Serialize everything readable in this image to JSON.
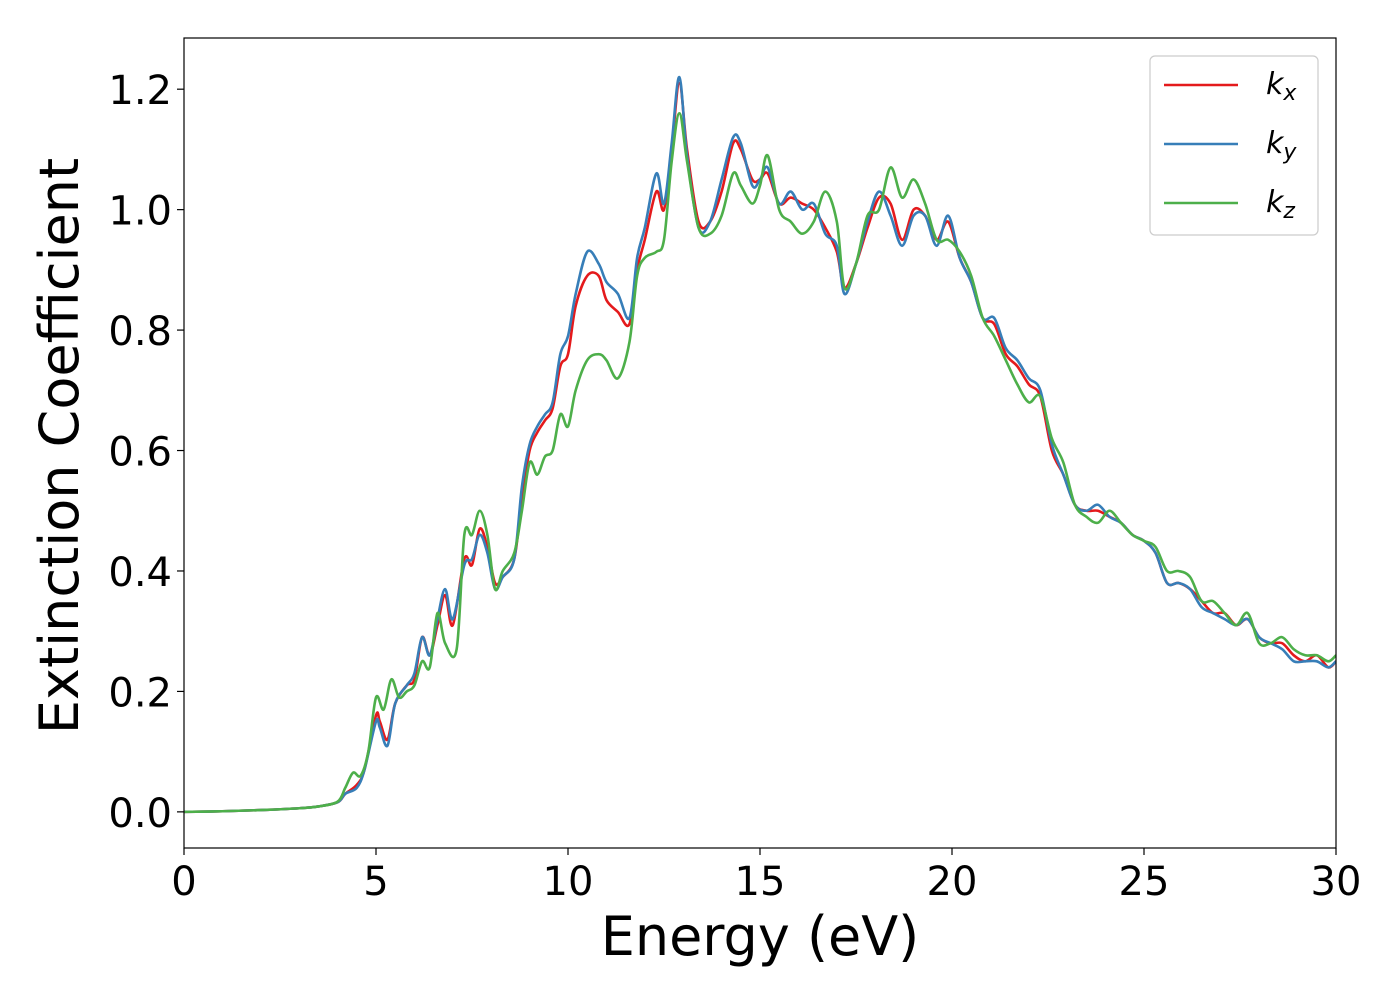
{
  "chart_data": {
    "type": "line",
    "title": "",
    "xlabel": "Energy (eV)",
    "ylabel": "Extinction Coefficient",
    "xlim": [
      0,
      30
    ],
    "ylim": [
      -0.06,
      1.285
    ],
    "xticks": [
      0,
      5,
      10,
      15,
      20,
      25,
      30
    ],
    "xtick_labels": [
      "0",
      "5",
      "10",
      "15",
      "20",
      "25",
      "30"
    ],
    "yticks": [
      0.0,
      0.2,
      0.4,
      0.6,
      0.8,
      1.0,
      1.2
    ],
    "ytick_labels": [
      "0.0",
      "0.2",
      "0.4",
      "0.6",
      "0.8",
      "1.0",
      "1.2"
    ],
    "grid": false,
    "legend_position": "top-right",
    "series": [
      {
        "name": "k_x",
        "legend_base": "k",
        "legend_sub": "x",
        "color": "#e41a1c",
        "points": [
          [
            0,
            0.0
          ],
          [
            1,
            0.001
          ],
          [
            2,
            0.003
          ],
          [
            3,
            0.006
          ],
          [
            3.5,
            0.009
          ],
          [
            4,
            0.016
          ],
          [
            4.2,
            0.03
          ],
          [
            4.5,
            0.045
          ],
          [
            4.7,
            0.07
          ],
          [
            5,
            0.16
          ],
          [
            5.1,
            0.15
          ],
          [
            5.3,
            0.12
          ],
          [
            5.5,
            0.18
          ],
          [
            5.8,
            0.21
          ],
          [
            6,
            0.22
          ],
          [
            6.2,
            0.29
          ],
          [
            6.4,
            0.26
          ],
          [
            6.6,
            0.31
          ],
          [
            6.8,
            0.36
          ],
          [
            7,
            0.31
          ],
          [
            7.3,
            0.42
          ],
          [
            7.5,
            0.41
          ],
          [
            7.7,
            0.47
          ],
          [
            7.9,
            0.44
          ],
          [
            8.1,
            0.38
          ],
          [
            8.3,
            0.39
          ],
          [
            8.6,
            0.42
          ],
          [
            8.8,
            0.52
          ],
          [
            9,
            0.6
          ],
          [
            9.2,
            0.63
          ],
          [
            9.4,
            0.65
          ],
          [
            9.6,
            0.67
          ],
          [
            9.8,
            0.74
          ],
          [
            10,
            0.76
          ],
          [
            10.2,
            0.84
          ],
          [
            10.5,
            0.89
          ],
          [
            10.8,
            0.89
          ],
          [
            11,
            0.85
          ],
          [
            11.3,
            0.83
          ],
          [
            11.6,
            0.81
          ],
          [
            11.8,
            0.9
          ],
          [
            12,
            0.95
          ],
          [
            12.3,
            1.03
          ],
          [
            12.5,
            1.0
          ],
          [
            12.7,
            1.1
          ],
          [
            12.9,
            1.21
          ],
          [
            13.1,
            1.1
          ],
          [
            13.4,
            0.98
          ],
          [
            13.7,
            0.98
          ],
          [
            14,
            1.03
          ],
          [
            14.3,
            1.11
          ],
          [
            14.5,
            1.1
          ],
          [
            14.8,
            1.05
          ],
          [
            15,
            1.05
          ],
          [
            15.2,
            1.06
          ],
          [
            15.5,
            1.01
          ],
          [
            15.8,
            1.02
          ],
          [
            16.1,
            1.01
          ],
          [
            16.4,
            1.0
          ],
          [
            16.7,
            0.97
          ],
          [
            17,
            0.93
          ],
          [
            17.2,
            0.87
          ],
          [
            17.5,
            0.91
          ],
          [
            17.8,
            0.97
          ],
          [
            18.1,
            1.02
          ],
          [
            18.4,
            1.01
          ],
          [
            18.7,
            0.95
          ],
          [
            19,
            1.0
          ],
          [
            19.3,
            0.99
          ],
          [
            19.6,
            0.95
          ],
          [
            19.9,
            0.98
          ],
          [
            20.2,
            0.92
          ],
          [
            20.5,
            0.88
          ],
          [
            20.8,
            0.82
          ],
          [
            21.1,
            0.81
          ],
          [
            21.4,
            0.76
          ],
          [
            21.7,
            0.74
          ],
          [
            22,
            0.71
          ],
          [
            22.3,
            0.69
          ],
          [
            22.6,
            0.6
          ],
          [
            22.9,
            0.56
          ],
          [
            23.2,
            0.51
          ],
          [
            23.5,
            0.5
          ],
          [
            23.8,
            0.5
          ],
          [
            24.1,
            0.49
          ],
          [
            24.4,
            0.48
          ],
          [
            24.7,
            0.46
          ],
          [
            25,
            0.45
          ],
          [
            25.3,
            0.43
          ],
          [
            25.6,
            0.38
          ],
          [
            25.9,
            0.38
          ],
          [
            26.2,
            0.37
          ],
          [
            26.5,
            0.35
          ],
          [
            26.8,
            0.33
          ],
          [
            27.1,
            0.33
          ],
          [
            27.4,
            0.31
          ],
          [
            27.7,
            0.32
          ],
          [
            28,
            0.29
          ],
          [
            28.3,
            0.28
          ],
          [
            28.6,
            0.28
          ],
          [
            28.9,
            0.26
          ],
          [
            29.2,
            0.25
          ],
          [
            29.5,
            0.26
          ],
          [
            29.8,
            0.24
          ],
          [
            30,
            0.25
          ]
        ]
      },
      {
        "name": "k_y",
        "legend_base": "k",
        "legend_sub": "y",
        "color": "#377eb8",
        "points": [
          [
            0,
            0.0
          ],
          [
            1,
            0.001
          ],
          [
            2,
            0.003
          ],
          [
            3,
            0.006
          ],
          [
            3.5,
            0.009
          ],
          [
            4,
            0.016
          ],
          [
            4.2,
            0.03
          ],
          [
            4.5,
            0.04
          ],
          [
            4.7,
            0.07
          ],
          [
            5,
            0.15
          ],
          [
            5.1,
            0.14
          ],
          [
            5.3,
            0.11
          ],
          [
            5.5,
            0.18
          ],
          [
            5.8,
            0.21
          ],
          [
            6,
            0.23
          ],
          [
            6.2,
            0.29
          ],
          [
            6.4,
            0.26
          ],
          [
            6.6,
            0.32
          ],
          [
            6.8,
            0.37
          ],
          [
            7,
            0.32
          ],
          [
            7.3,
            0.41
          ],
          [
            7.5,
            0.42
          ],
          [
            7.7,
            0.46
          ],
          [
            7.9,
            0.43
          ],
          [
            8.1,
            0.37
          ],
          [
            8.3,
            0.39
          ],
          [
            8.6,
            0.42
          ],
          [
            8.8,
            0.54
          ],
          [
            9,
            0.61
          ],
          [
            9.2,
            0.64
          ],
          [
            9.4,
            0.66
          ],
          [
            9.6,
            0.68
          ],
          [
            9.8,
            0.76
          ],
          [
            10,
            0.79
          ],
          [
            10.2,
            0.86
          ],
          [
            10.5,
            0.93
          ],
          [
            10.8,
            0.91
          ],
          [
            11,
            0.88
          ],
          [
            11.3,
            0.86
          ],
          [
            11.6,
            0.82
          ],
          [
            11.8,
            0.92
          ],
          [
            12,
            0.97
          ],
          [
            12.3,
            1.06
          ],
          [
            12.5,
            1.01
          ],
          [
            12.7,
            1.11
          ],
          [
            12.9,
            1.22
          ],
          [
            13.1,
            1.09
          ],
          [
            13.4,
            0.97
          ],
          [
            13.7,
            0.98
          ],
          [
            14,
            1.05
          ],
          [
            14.3,
            1.12
          ],
          [
            14.5,
            1.11
          ],
          [
            14.8,
            1.04
          ],
          [
            15,
            1.05
          ],
          [
            15.2,
            1.07
          ],
          [
            15.5,
            1.01
          ],
          [
            15.8,
            1.03
          ],
          [
            16.1,
            1.0
          ],
          [
            16.4,
            1.01
          ],
          [
            16.7,
            0.96
          ],
          [
            17,
            0.94
          ],
          [
            17.2,
            0.86
          ],
          [
            17.5,
            0.91
          ],
          [
            17.8,
            0.98
          ],
          [
            18.1,
            1.03
          ],
          [
            18.4,
            0.99
          ],
          [
            18.7,
            0.94
          ],
          [
            19,
            0.99
          ],
          [
            19.3,
            0.99
          ],
          [
            19.6,
            0.94
          ],
          [
            19.9,
            0.99
          ],
          [
            20.2,
            0.92
          ],
          [
            20.5,
            0.88
          ],
          [
            20.8,
            0.82
          ],
          [
            21.1,
            0.82
          ],
          [
            21.4,
            0.77
          ],
          [
            21.7,
            0.75
          ],
          [
            22,
            0.72
          ],
          [
            22.3,
            0.7
          ],
          [
            22.6,
            0.61
          ],
          [
            22.9,
            0.56
          ],
          [
            23.2,
            0.51
          ],
          [
            23.5,
            0.5
          ],
          [
            23.8,
            0.51
          ],
          [
            24.1,
            0.49
          ],
          [
            24.4,
            0.48
          ],
          [
            24.7,
            0.46
          ],
          [
            25,
            0.45
          ],
          [
            25.3,
            0.43
          ],
          [
            25.6,
            0.38
          ],
          [
            25.9,
            0.38
          ],
          [
            26.2,
            0.37
          ],
          [
            26.5,
            0.34
          ],
          [
            26.8,
            0.33
          ],
          [
            27.1,
            0.32
          ],
          [
            27.4,
            0.31
          ],
          [
            27.7,
            0.32
          ],
          [
            28,
            0.29
          ],
          [
            28.3,
            0.28
          ],
          [
            28.6,
            0.27
          ],
          [
            28.9,
            0.25
          ],
          [
            29.2,
            0.25
          ],
          [
            29.5,
            0.25
          ],
          [
            29.8,
            0.24
          ],
          [
            30,
            0.25
          ]
        ]
      },
      {
        "name": "k_z",
        "legend_base": "k",
        "legend_sub": "z",
        "color": "#4daf4a",
        "points": [
          [
            0,
            0.0
          ],
          [
            1,
            0.001
          ],
          [
            2,
            0.003
          ],
          [
            3,
            0.006
          ],
          [
            3.5,
            0.009
          ],
          [
            4,
            0.017
          ],
          [
            4.2,
            0.04
          ],
          [
            4.4,
            0.065
          ],
          [
            4.6,
            0.06
          ],
          [
            4.8,
            0.1
          ],
          [
            5,
            0.19
          ],
          [
            5.2,
            0.17
          ],
          [
            5.4,
            0.22
          ],
          [
            5.6,
            0.19
          ],
          [
            5.8,
            0.2
          ],
          [
            6,
            0.21
          ],
          [
            6.2,
            0.25
          ],
          [
            6.4,
            0.24
          ],
          [
            6.6,
            0.33
          ],
          [
            6.8,
            0.28
          ],
          [
            7.1,
            0.27
          ],
          [
            7.3,
            0.46
          ],
          [
            7.5,
            0.46
          ],
          [
            7.7,
            0.5
          ],
          [
            7.9,
            0.46
          ],
          [
            8.1,
            0.37
          ],
          [
            8.3,
            0.4
          ],
          [
            8.6,
            0.43
          ],
          [
            8.8,
            0.5
          ],
          [
            9,
            0.58
          ],
          [
            9.2,
            0.56
          ],
          [
            9.4,
            0.59
          ],
          [
            9.6,
            0.6
          ],
          [
            9.8,
            0.66
          ],
          [
            10,
            0.64
          ],
          [
            10.2,
            0.7
          ],
          [
            10.5,
            0.75
          ],
          [
            10.8,
            0.76
          ],
          [
            11,
            0.75
          ],
          [
            11.3,
            0.72
          ],
          [
            11.6,
            0.78
          ],
          [
            11.8,
            0.89
          ],
          [
            12,
            0.92
          ],
          [
            12.3,
            0.93
          ],
          [
            12.5,
            0.95
          ],
          [
            12.7,
            1.08
          ],
          [
            12.9,
            1.16
          ],
          [
            13.1,
            1.08
          ],
          [
            13.4,
            0.97
          ],
          [
            13.7,
            0.96
          ],
          [
            14,
            0.99
          ],
          [
            14.3,
            1.06
          ],
          [
            14.5,
            1.04
          ],
          [
            14.8,
            1.01
          ],
          [
            15,
            1.04
          ],
          [
            15.2,
            1.09
          ],
          [
            15.5,
            1.0
          ],
          [
            15.8,
            0.98
          ],
          [
            16.1,
            0.96
          ],
          [
            16.4,
            0.98
          ],
          [
            16.7,
            1.03
          ],
          [
            17,
            0.98
          ],
          [
            17.2,
            0.87
          ],
          [
            17.5,
            0.91
          ],
          [
            17.8,
            0.99
          ],
          [
            18.1,
            1.0
          ],
          [
            18.4,
            1.07
          ],
          [
            18.7,
            1.02
          ],
          [
            19,
            1.05
          ],
          [
            19.3,
            1.01
          ],
          [
            19.6,
            0.95
          ],
          [
            19.9,
            0.95
          ],
          [
            20.2,
            0.93
          ],
          [
            20.5,
            0.89
          ],
          [
            20.8,
            0.82
          ],
          [
            21.1,
            0.79
          ],
          [
            21.4,
            0.75
          ],
          [
            21.7,
            0.71
          ],
          [
            22,
            0.68
          ],
          [
            22.3,
            0.69
          ],
          [
            22.6,
            0.62
          ],
          [
            22.9,
            0.58
          ],
          [
            23.2,
            0.51
          ],
          [
            23.5,
            0.49
          ],
          [
            23.8,
            0.48
          ],
          [
            24.1,
            0.5
          ],
          [
            24.4,
            0.48
          ],
          [
            24.7,
            0.46
          ],
          [
            25,
            0.45
          ],
          [
            25.3,
            0.44
          ],
          [
            25.6,
            0.4
          ],
          [
            25.9,
            0.4
          ],
          [
            26.2,
            0.39
          ],
          [
            26.5,
            0.35
          ],
          [
            26.8,
            0.35
          ],
          [
            27.1,
            0.33
          ],
          [
            27.4,
            0.31
          ],
          [
            27.7,
            0.33
          ],
          [
            28,
            0.28
          ],
          [
            28.3,
            0.28
          ],
          [
            28.6,
            0.29
          ],
          [
            28.9,
            0.27
          ],
          [
            29.2,
            0.26
          ],
          [
            29.5,
            0.26
          ],
          [
            29.8,
            0.25
          ],
          [
            30,
            0.26
          ]
        ]
      }
    ]
  }
}
